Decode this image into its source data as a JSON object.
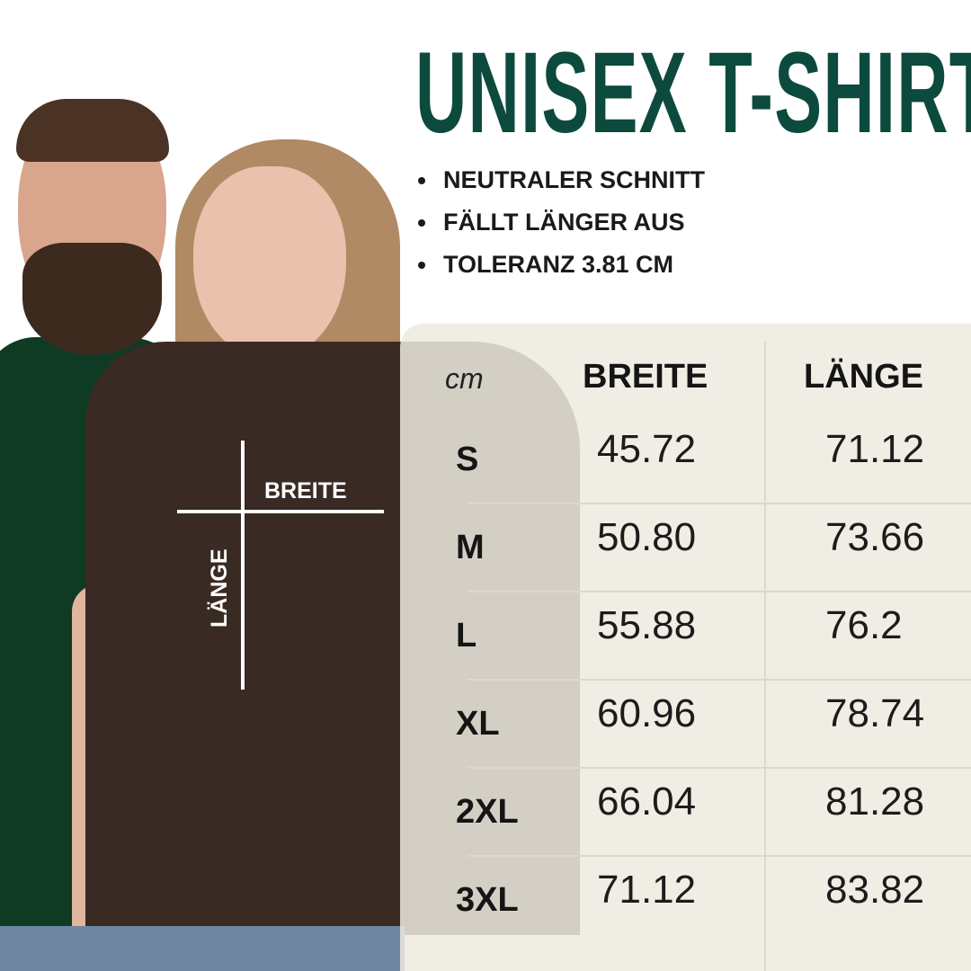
{
  "title": "UNISEX T-SHIRT",
  "features": [
    "NEUTRALER SCHNITT",
    "FÄLLT LÄNGER AUS",
    "TOLERANZ 3.81 CM"
  ],
  "diagram": {
    "width_label": "BREITE",
    "length_label": "LÄNGE"
  },
  "table": {
    "unit": "cm",
    "headers": [
      "BREITE",
      "LÄNGE"
    ],
    "rows": [
      {
        "size": "S",
        "breite": "45.72",
        "laenge": "71.12"
      },
      {
        "size": "M",
        "breite": "50.80",
        "laenge": "73.66"
      },
      {
        "size": "L",
        "breite": "55.88",
        "laenge": "76.2"
      },
      {
        "size": "XL",
        "breite": "60.96",
        "laenge": "78.74"
      },
      {
        "size": "2XL",
        "breite": "66.04",
        "laenge": "81.28"
      },
      {
        "size": "3XL",
        "breite": "71.12",
        "laenge": "83.82"
      }
    ]
  },
  "colors": {
    "title": "#0d4a3e",
    "panel": "#eeeae0",
    "green_shirt": "#0f3b25",
    "brown_shirt": "#3a2a24"
  }
}
